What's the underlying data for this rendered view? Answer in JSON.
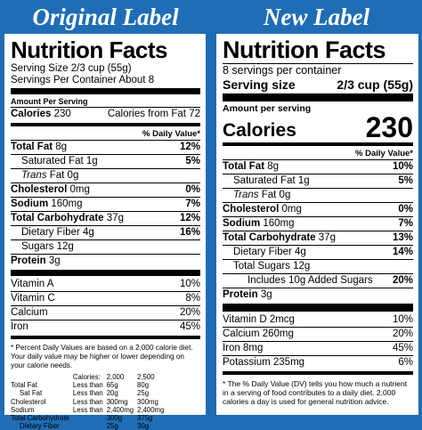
{
  "headings": {
    "original": "Original Label",
    "new": "New Label"
  },
  "original": {
    "title": "Nutrition Facts",
    "serving_size": "Serving Size 2/3 cup (55g)",
    "servings": "Servings Per Container About 8",
    "amount_per_serving": "Amount Per Serving",
    "calories_label": "Calories",
    "calories_value": "230",
    "calories_fat": "Calories from Fat 72",
    "daily_value_header": "% Daily Value*",
    "rows": [
      {
        "label": "Total Fat",
        "amount": "8g",
        "dv": "12%",
        "bold": true,
        "indent": 0
      },
      {
        "label": "Saturated Fat",
        "amount": "1g",
        "dv": "5%",
        "bold": false,
        "indent": 1
      },
      {
        "label": "Trans",
        "amount": "Fat 0g",
        "dv": "",
        "bold": false,
        "indent": 1,
        "italic": true
      },
      {
        "label": "Cholesterol",
        "amount": "0mg",
        "dv": "0%",
        "bold": true,
        "indent": 0
      },
      {
        "label": "Sodium",
        "amount": "160mg",
        "dv": "7%",
        "bold": true,
        "indent": 0
      },
      {
        "label": "Total Carbohydrate",
        "amount": "37g",
        "dv": "12%",
        "bold": true,
        "indent": 0
      },
      {
        "label": "Dietary Fiber",
        "amount": "4g",
        "dv": "16%",
        "bold": false,
        "indent": 1
      },
      {
        "label": "Sugars",
        "amount": "12g",
        "dv": "",
        "bold": false,
        "indent": 1
      },
      {
        "label": "Protein",
        "amount": "3g",
        "dv": "",
        "bold": true,
        "indent": 0
      }
    ],
    "vitamins": [
      {
        "label": "Vitamin A",
        "dv": "10%"
      },
      {
        "label": "Vitamin C",
        "dv": "8%"
      },
      {
        "label": "Calcium",
        "dv": "20%"
      },
      {
        "label": "Iron",
        "dv": "45%"
      }
    ],
    "footnote": "* Percent Daily Values are based on a 2,000 calorie diet. Your daily value may be higher or lower depending on your calorie needs.",
    "ftable": {
      "header": [
        "",
        "Calories:",
        "2,000",
        "2,500"
      ],
      "rows": [
        [
          "Total Fat",
          "Less than",
          "65g",
          "80g"
        ],
        [
          "Sat Fat",
          "Less than",
          "20g",
          "25g"
        ],
        [
          "Cholesterol",
          "Less than",
          "300mg",
          "300mg"
        ],
        [
          "Sodium",
          "Less than",
          "2,400mg",
          "2,400mg"
        ],
        [
          "Total Carbohydrate",
          "",
          "300g",
          "375g"
        ],
        [
          "Dietary Fiber",
          "",
          "25g",
          "30g"
        ]
      ]
    }
  },
  "new": {
    "title": "Nutrition Facts",
    "servings": "8 servings per container",
    "serving_size_label": "Serving size",
    "serving_size_value": "2/3 cup (55g)",
    "amount_per_serving": "Amount per serving",
    "calories_label": "Calories",
    "calories_value": "230",
    "daily_value_header": "% Daily Value*",
    "rows": [
      {
        "label": "Total Fat",
        "amount": "8g",
        "dv": "10%",
        "bold": true,
        "indent": 0
      },
      {
        "label": "Saturated Fat",
        "amount": "1g",
        "dv": "5%",
        "bold": false,
        "indent": 1
      },
      {
        "label": "Trans",
        "amount": "Fat 0g",
        "dv": "",
        "bold": false,
        "indent": 1,
        "italic": true
      },
      {
        "label": "Cholesterol",
        "amount": "0mg",
        "dv": "0%",
        "bold": true,
        "indent": 0
      },
      {
        "label": "Sodium",
        "amount": "160mg",
        "dv": "7%",
        "bold": true,
        "indent": 0
      },
      {
        "label": "Total Carbohydrate",
        "amount": "37g",
        "dv": "13%",
        "bold": true,
        "indent": 0
      },
      {
        "label": "Dietary Fiber",
        "amount": "4g",
        "dv": "14%",
        "bold": false,
        "indent": 1
      },
      {
        "label": "Total Sugars",
        "amount": "12g",
        "dv": "",
        "bold": false,
        "indent": 1
      },
      {
        "label": "Includes 10g Added Sugars",
        "amount": "",
        "dv": "20%",
        "bold": false,
        "indent": 2
      },
      {
        "label": "Protein",
        "amount": "3g",
        "dv": "",
        "bold": true,
        "indent": 0
      }
    ],
    "vitamins": [
      {
        "label": "Vitamin D 2mcg",
        "dv": "10%"
      },
      {
        "label": "Calcium 260mg",
        "dv": "20%"
      },
      {
        "label": "Iron 8mg",
        "dv": "45%"
      },
      {
        "label": "Potassium 235mg",
        "dv": "6%"
      }
    ],
    "footnote": "* The % Daily Value (DV) tells you how much a nutrient in a serving of food contributes to a daily diet. 2,000 calories a day is used for general nutrition advice."
  }
}
